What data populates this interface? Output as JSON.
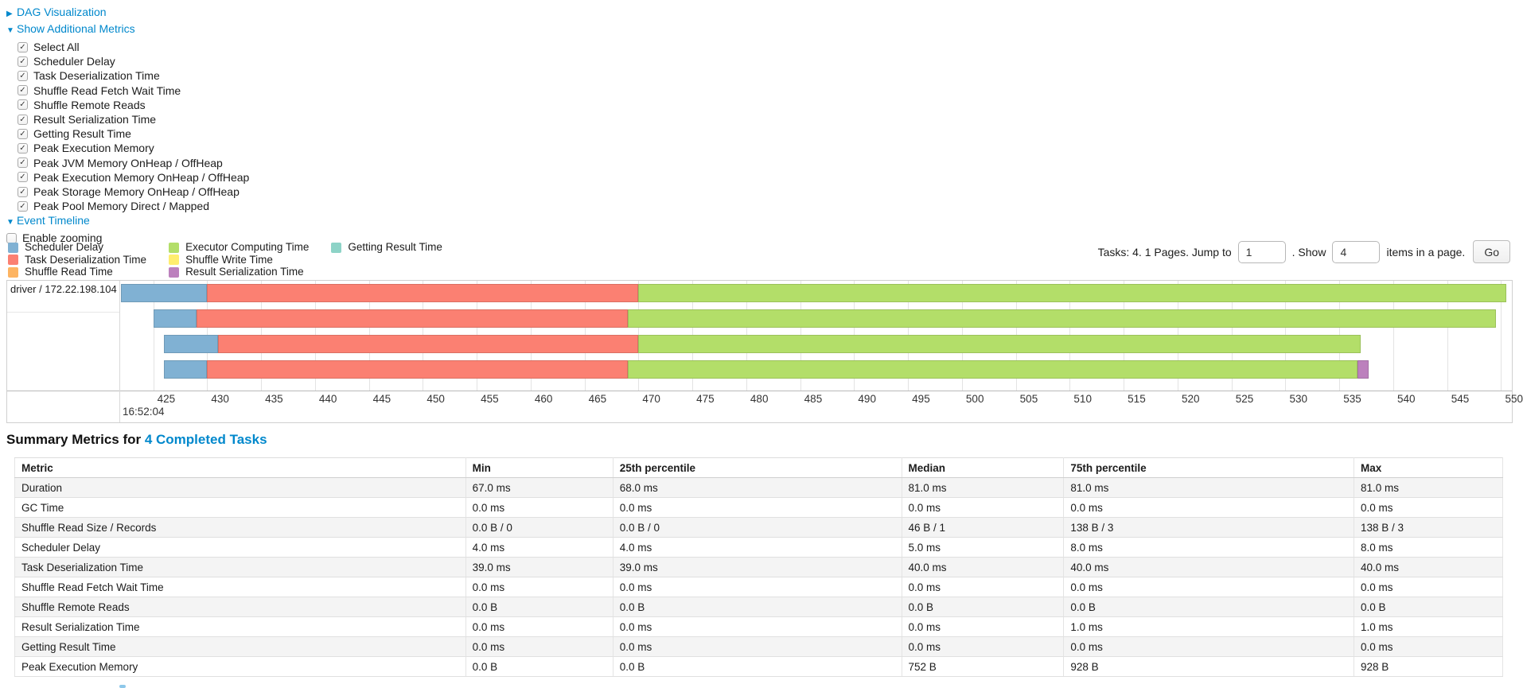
{
  "colors": {
    "link": "#0088cc",
    "type_colors": {
      "scheduler_delay": "#80B1D3",
      "task_deserialization": "#FB8072",
      "shuffle_read": "#FDB462",
      "executor_computing": "#B3DE69",
      "shuffle_write": "#FFED6F",
      "result_serialization": "#BC80BD",
      "getting_result": "#8DD3C7"
    }
  },
  "toggles": {
    "dag": {
      "label": "DAG Visualization",
      "arrow": "▶",
      "expanded": false
    },
    "metrics": {
      "label": "Show Additional Metrics",
      "arrow": "▼",
      "expanded": true
    },
    "timeline": {
      "label": "Event Timeline",
      "arrow": "▼",
      "expanded": true
    }
  },
  "metrics_panel": {
    "items": [
      {
        "label": "Select All",
        "checked": true
      },
      {
        "label": "Scheduler Delay",
        "checked": true
      },
      {
        "label": "Task Deserialization Time",
        "checked": true
      },
      {
        "label": "Shuffle Read Fetch Wait Time",
        "checked": true
      },
      {
        "label": "Shuffle Remote Reads",
        "checked": true
      },
      {
        "label": "Result Serialization Time",
        "checked": true
      },
      {
        "label": "Getting Result Time",
        "checked": true
      },
      {
        "label": "Peak Execution Memory",
        "checked": true
      },
      {
        "label": "Peak JVM Memory OnHeap / OffHeap",
        "checked": true
      },
      {
        "label": "Peak Execution Memory OnHeap / OffHeap",
        "checked": true
      },
      {
        "label": "Peak Storage Memory OnHeap / OffHeap",
        "checked": true
      },
      {
        "label": "Peak Pool Memory Direct / Mapped",
        "checked": true
      }
    ]
  },
  "enable_zooming": {
    "label": "Enable zooming",
    "checked": false
  },
  "legend": {
    "columns": [
      [
        {
          "label": "Scheduler Delay",
          "type": "scheduler_delay"
        },
        {
          "label": "Task Deserialization Time",
          "type": "task_deserialization"
        },
        {
          "label": "Shuffle Read Time",
          "type": "shuffle_read"
        }
      ],
      [
        {
          "label": "Executor Computing Time",
          "type": "executor_computing"
        },
        {
          "label": "Shuffle Write Time",
          "type": "shuffle_write"
        },
        {
          "label": "Result Serialization Time",
          "type": "result_serialization"
        }
      ],
      [
        {
          "label": "Getting Result Time",
          "type": "getting_result"
        }
      ]
    ]
  },
  "pagination": {
    "tasks_text": "Tasks: 4. 1 Pages. Jump to",
    "jump_value": "1",
    "show_label": ". Show",
    "show_value": "4",
    "items_label": "items in a page.",
    "go_label": "Go"
  },
  "timeline_chart": {
    "group_label": "driver / 172.22.198.104",
    "axis": {
      "domain_start": 422,
      "domain_end": 551,
      "ticks": [
        425,
        430,
        435,
        440,
        445,
        450,
        455,
        460,
        465,
        470,
        475,
        480,
        485,
        490,
        495,
        500,
        505,
        510,
        515,
        520,
        525,
        530,
        535,
        540,
        545,
        550
      ],
      "start_time_label": "16:52:04"
    },
    "rows": [
      {
        "segments": [
          {
            "type": "scheduler_delay",
            "start": 422,
            "end": 430
          },
          {
            "type": "task_deserialization",
            "start": 430,
            "end": 470
          },
          {
            "type": "executor_computing",
            "start": 470,
            "end": 550.5
          }
        ]
      },
      {
        "segments": [
          {
            "type": "scheduler_delay",
            "start": 425,
            "end": 429
          },
          {
            "type": "task_deserialization",
            "start": 429,
            "end": 469
          },
          {
            "type": "executor_computing",
            "start": 469,
            "end": 549.5
          }
        ]
      },
      {
        "segments": [
          {
            "type": "scheduler_delay",
            "start": 426,
            "end": 431
          },
          {
            "type": "task_deserialization",
            "start": 431,
            "end": 470
          },
          {
            "type": "executor_computing",
            "start": 470,
            "end": 537
          }
        ]
      },
      {
        "segments": [
          {
            "type": "scheduler_delay",
            "start": 426,
            "end": 430
          },
          {
            "type": "task_deserialization",
            "start": 430,
            "end": 469
          },
          {
            "type": "executor_computing",
            "start": 469,
            "end": 536.7
          },
          {
            "type": "result_serialization",
            "start": 536.7,
            "end": 537.7
          }
        ]
      }
    ]
  },
  "summary": {
    "heading_prefix": "Summary Metrics for ",
    "heading_link": "4 Completed Tasks",
    "table": {
      "headers": [
        "Metric",
        "Min",
        "25th percentile",
        "Median",
        "75th percentile",
        "Max"
      ],
      "rows": [
        [
          "Duration",
          "67.0 ms",
          "68.0 ms",
          "81.0 ms",
          "81.0 ms",
          "81.0 ms"
        ],
        [
          "GC Time",
          "0.0 ms",
          "0.0 ms",
          "0.0 ms",
          "0.0 ms",
          "0.0 ms"
        ],
        [
          "Shuffle Read Size / Records",
          "0.0 B / 0",
          "0.0 B / 0",
          "46 B / 1",
          "138 B / 3",
          "138 B / 3"
        ],
        [
          "Scheduler Delay",
          "4.0 ms",
          "4.0 ms",
          "5.0 ms",
          "8.0 ms",
          "8.0 ms"
        ],
        [
          "Task Deserialization Time",
          "39.0 ms",
          "39.0 ms",
          "40.0 ms",
          "40.0 ms",
          "40.0 ms"
        ],
        [
          "Shuffle Read Fetch Wait Time",
          "0.0 ms",
          "0.0 ms",
          "0.0 ms",
          "0.0 ms",
          "0.0 ms"
        ],
        [
          "Shuffle Remote Reads",
          "0.0 B",
          "0.0 B",
          "0.0 B",
          "0.0 B",
          "0.0 B"
        ],
        [
          "Result Serialization Time",
          "0.0 ms",
          "0.0 ms",
          "0.0 ms",
          "1.0 ms",
          "1.0 ms"
        ],
        [
          "Getting Result Time",
          "0.0 ms",
          "0.0 ms",
          "0.0 ms",
          "0.0 ms",
          "0.0 ms"
        ],
        [
          "Peak Execution Memory",
          "0.0 B",
          "0.0 B",
          "752 B",
          "928 B",
          "928 B"
        ]
      ]
    }
  }
}
